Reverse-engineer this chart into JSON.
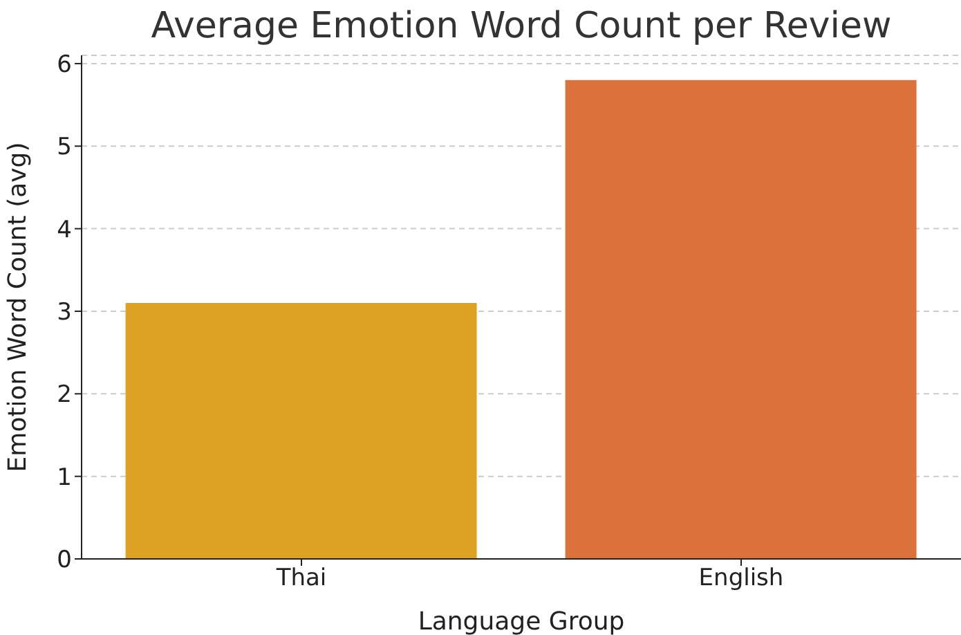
{
  "chart_data": {
    "type": "bar",
    "title": "Average Emotion Word Count per Review",
    "xlabel": "Language Group",
    "ylabel": "Emotion Word Count (avg)",
    "categories": [
      "Thai",
      "English"
    ],
    "values": [
      3.1,
      5.8
    ],
    "colors": [
      "#dfa324",
      "#db723c"
    ],
    "ylim": [
      0,
      6.1
    ],
    "yticks": [
      0,
      1,
      2,
      3,
      4,
      5,
      6
    ],
    "grid": "y"
  }
}
